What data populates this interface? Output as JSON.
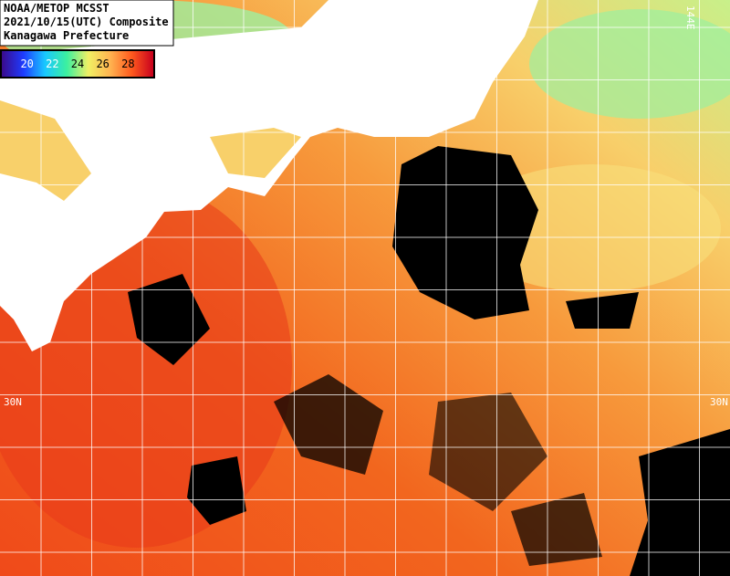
{
  "header": {
    "lines": [
      "NOAA/METOP MCSST",
      "2021/10/15(UTC) Composite",
      "Kanagawa Prefecture"
    ]
  },
  "colorbar": {
    "range": [
      18,
      30
    ],
    "ticks": [
      20,
      22,
      24,
      26,
      28
    ],
    "colors": [
      "#3a0a8c",
      "#1e3cff",
      "#19c8ff",
      "#3cf0a0",
      "#f0f064",
      "#ffb450",
      "#ff5a1e",
      "#c8001e"
    ]
  },
  "grid_labels": {
    "lat": "30N",
    "lon": "144E"
  }
}
